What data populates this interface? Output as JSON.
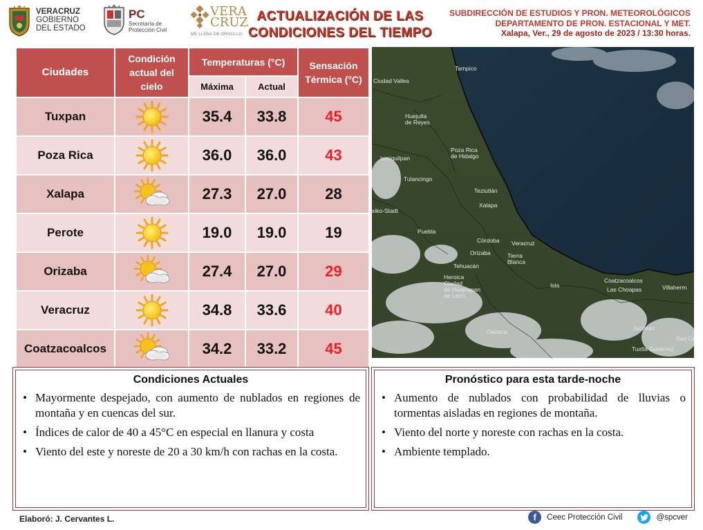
{
  "header": {
    "veracruz_logo": {
      "line1": "VERACRUZ",
      "line2": "GOBIERNO",
      "line3": "DEL ESTADO"
    },
    "pc_logo": {
      "abbr": "PC",
      "line1": "Secretaría de",
      "line2": "Protección Civil"
    },
    "veracruz_brand": {
      "line1": "VERA",
      "line2": "CRUZ",
      "slogan": "ME LLENA DE ORGULLO"
    },
    "title_line1": "ACTUALIZACIÓN  DE LAS",
    "title_line2": "CONDICIONES  DEL TIEMPO",
    "dept_line1": "SUBDIRECCIÓN DE ESTUDIOS Y PRON. METEOROLÓGICOS",
    "dept_line2": "DEPARTAMENTO DE PRON.  ESTACIONAL Y MET.",
    "dept_line3": "Xalapa, Ver., 29 de agosto de 2023 / 13:30 horas."
  },
  "table": {
    "headers": {
      "city": "Ciudades",
      "condition": "Condición actual del cielo",
      "temperatures": "Temperaturas (°C)",
      "max": "Máxima",
      "current": "Actual",
      "sensation": "Sensación Térmica (°C)"
    },
    "rows": [
      {
        "city": "Tuxpan",
        "icon": "sun-icon",
        "max": "35.4",
        "current": "33.8",
        "sensation": "45",
        "sensation_color": "#e8202a"
      },
      {
        "city": "Poza Rica",
        "icon": "sun-icon",
        "max": "36.0",
        "current": "36.0",
        "sensation": "43",
        "sensation_color": "#e8202a"
      },
      {
        "city": "Xalapa",
        "icon": "partly-cloudy-icon",
        "max": "27.3",
        "current": "27.0",
        "sensation": "28",
        "sensation_color": "#111111"
      },
      {
        "city": "Perote",
        "icon": "sun-icon",
        "max": "19.0",
        "current": "19.0",
        "sensation": "19",
        "sensation_color": "#111111"
      },
      {
        "city": "Orizaba",
        "icon": "partly-cloudy-icon",
        "max": "27.4",
        "current": "27.0",
        "sensation": "29",
        "sensation_color": "#e8202a"
      },
      {
        "city": "Veracruz",
        "icon": "sun-icon",
        "max": "34.8",
        "current": "33.6",
        "sensation": "40",
        "sensation_color": "#e8202a"
      },
      {
        "city": "Coatzacoalcos",
        "icon": "partly-cloudy-icon",
        "max": "34.2",
        "current": "33.2",
        "sensation": "45",
        "sensation_color": "#e8202a"
      }
    ]
  },
  "map": {
    "labels": [
      "Tampico",
      "Ciudad Valles",
      "Huejutla de Reyes",
      "Poza Rica de Hidalgo",
      "Ixmiquilpan",
      "Tulancingo",
      "Teziutlán",
      "Xalapa",
      "xiko-Stadt",
      "Puebla",
      "Veracruz",
      "Córdoba",
      "Orizaba",
      "Tehuacán",
      "Tierra Blanca",
      "Heroica Ciudad de Huajuapan de León",
      "Isla",
      "Coatzacoalcos",
      "Las Choapas",
      "Villaherm",
      "Oaxaca",
      "Juchitán",
      "Tuxtla Gutiérrez",
      "San Cr"
    ]
  },
  "current": {
    "title": "Condiciones Actuales",
    "items": [
      "Mayormente despejado, con aumento de nublados en regiones de montaña y en cuencas del sur.",
      "Índices de calor de 40 a 45°C en especial en llanura y costa",
      "Viento del este y noreste de 20 a 30 km/h con rachas en la costa."
    ]
  },
  "forecast": {
    "title": "Pronóstico para esta tarde-noche",
    "items": [
      "Aumento de nublados con probabilidad de lluvias o tormentas aisladas en regiones de montaña.",
      "Viento del norte y noreste con rachas en la costa.",
      "Ambiente templado."
    ]
  },
  "footer": {
    "author": "Elaboró: J. Cervantes L.",
    "facebook_icon": "facebook-icon",
    "facebook": "Ceec Protección Civil",
    "twitter_icon": "twitter-icon",
    "twitter": "@spcver"
  }
}
